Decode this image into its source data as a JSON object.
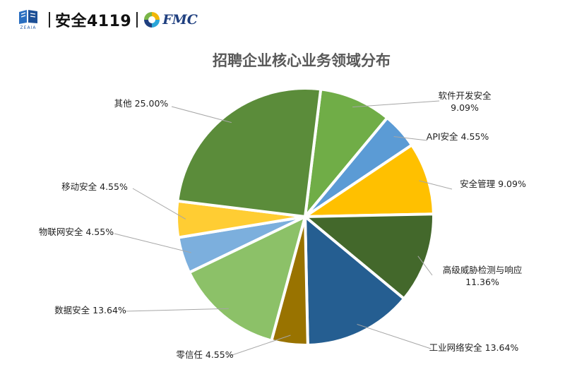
{
  "header": {
    "zeaia_label": "ZEAIA",
    "brand_main": "安全4119",
    "fmc_label": "FMC"
  },
  "colors": {
    "wedge_border": "#ffffff",
    "label_text": "#222222",
    "leader_line": "#a6a6a6",
    "title_text": "#595959"
  },
  "chart_data": {
    "type": "pie",
    "title": "招聘企业核心业务领域分布",
    "start_angle_deg": 7,
    "direction": "clockwise",
    "slices": [
      {
        "name": "软件开发安全",
        "value": 9.09,
        "label_lines": [
          "软件开发安全",
          "9.09%"
        ],
        "color": "#70ad47"
      },
      {
        "name": "API安全",
        "value": 4.55,
        "label_lines": [
          "API安全 4.55%"
        ],
        "color": "#5b9bd5"
      },
      {
        "name": "安全管理",
        "value": 9.09,
        "label_lines": [
          "安全管理 9.09%"
        ],
        "color": "#ffc000"
      },
      {
        "name": "高级威胁检测与响应",
        "value": 11.36,
        "label_lines": [
          "高级威胁检测与响应",
          "11.36%"
        ],
        "color": "#43682b"
      },
      {
        "name": "工业网络安全",
        "value": 13.64,
        "label_lines": [
          "工业网络安全 13.64%"
        ],
        "color": "#255e91"
      },
      {
        "name": "零信任",
        "value": 4.55,
        "label_lines": [
          "零信任 4.55%"
        ],
        "color": "#997300"
      },
      {
        "name": "数据安全",
        "value": 13.64,
        "label_lines": [
          "数据安全 13.64%"
        ],
        "color": "#8cc168"
      },
      {
        "name": "物联网安全",
        "value": 4.55,
        "label_lines": [
          "物联网安全 4.55%"
        ],
        "color": "#7cafdd"
      },
      {
        "name": "移动安全",
        "value": 4.55,
        "label_lines": [
          "移动安全 4.55%"
        ],
        "color": "#ffcd33"
      },
      {
        "name": "其他",
        "value": 25.0,
        "label_lines": [
          "其他 25.00%"
        ],
        "color": "#5b8c3a"
      }
    ]
  }
}
